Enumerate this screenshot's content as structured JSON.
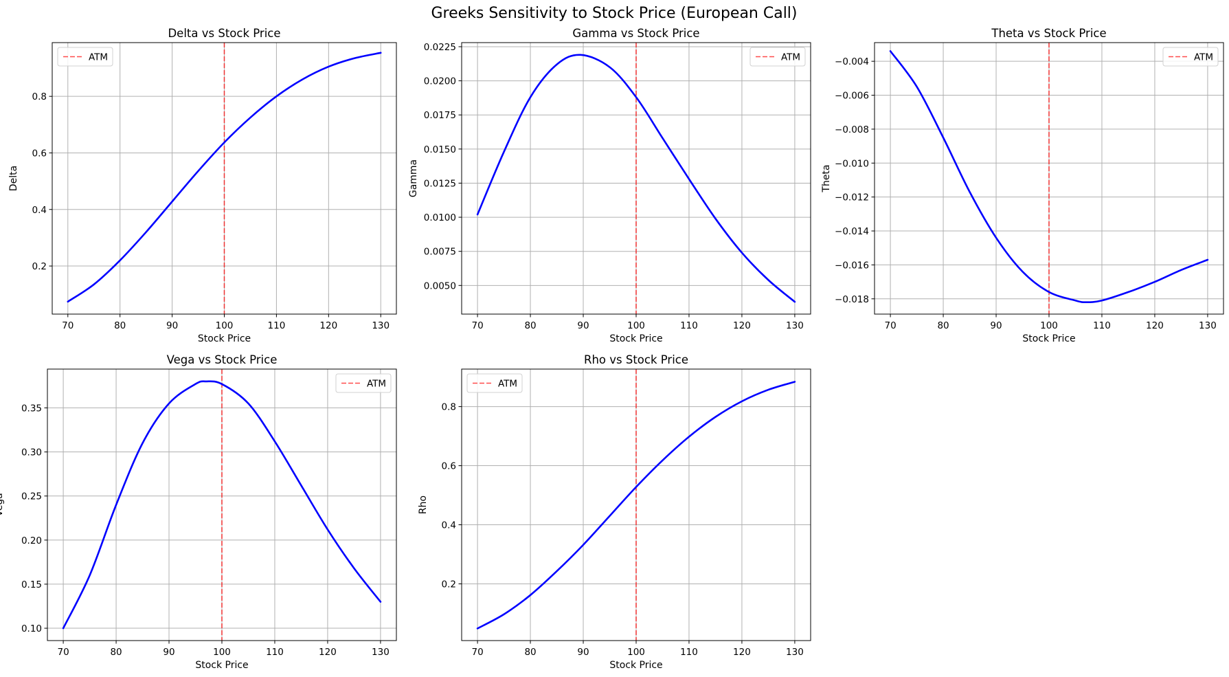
{
  "figure": {
    "title": "Greeks Sensitivity to Stock Price (European Call)"
  },
  "colors": {
    "series": "#0000ff",
    "atm_line": "#ff0000",
    "grid": "#b0b0b0",
    "axes": "#000000"
  },
  "chart_data": [
    {
      "type": "line",
      "title": "Delta vs Stock Price",
      "xlabel": "Stock Price",
      "ylabel": "Delta",
      "xlim": [
        67,
        133
      ],
      "ylim": [
        0.03,
        0.99
      ],
      "xticks": [
        70,
        80,
        90,
        100,
        110,
        120,
        130
      ],
      "yticks": [
        0.2,
        0.4,
        0.6,
        0.8
      ],
      "ytick_labels": [
        "0.2",
        "0.4",
        "0.6",
        "0.8"
      ],
      "grid": true,
      "legend_position": "upper-left",
      "atm_line": {
        "x": 100,
        "label": "ATM"
      },
      "series": [
        {
          "x": [
            70,
            75,
            80,
            85,
            90,
            95,
            100,
            105,
            110,
            115,
            120,
            125,
            130
          ],
          "y": [
            0.074,
            0.135,
            0.22,
            0.32,
            0.428,
            0.536,
            0.637,
            0.725,
            0.8,
            0.86,
            0.905,
            0.935,
            0.954
          ]
        }
      ]
    },
    {
      "type": "line",
      "title": "Gamma vs Stock Price",
      "xlabel": "Stock Price",
      "ylabel": "Gamma",
      "xlim": [
        67,
        133
      ],
      "ylim": [
        0.0029,
        0.0228
      ],
      "xticks": [
        70,
        80,
        90,
        100,
        110,
        120,
        130
      ],
      "yticks": [
        0.005,
        0.0075,
        0.01,
        0.0125,
        0.015,
        0.0175,
        0.02,
        0.0225
      ],
      "ytick_labels": [
        "0.0050",
        "0.0075",
        "0.0100",
        "0.0125",
        "0.0150",
        "0.0175",
        "0.0200",
        "0.0225"
      ],
      "grid": true,
      "legend_position": "upper-right",
      "atm_line": {
        "x": 100,
        "label": "ATM"
      },
      "series": [
        {
          "x": [
            70,
            75,
            80,
            85,
            89.5,
            95,
            100,
            105,
            110,
            115,
            120,
            125,
            130
          ],
          "y": [
            0.0102,
            0.0148,
            0.0188,
            0.0212,
            0.0219,
            0.021,
            0.0188,
            0.0158,
            0.0128,
            0.0099,
            0.0074,
            0.0054,
            0.0038
          ]
        }
      ]
    },
    {
      "type": "line",
      "title": "Theta vs Stock Price",
      "xlabel": "Stock Price",
      "ylabel": "Theta",
      "xlim": [
        67,
        133
      ],
      "ylim": [
        -0.0189,
        -0.0029
      ],
      "xticks": [
        70,
        80,
        90,
        100,
        110,
        120,
        130
      ],
      "yticks": [
        -0.018,
        -0.016,
        -0.014,
        -0.012,
        -0.01,
        -0.008,
        -0.006,
        -0.004
      ],
      "ytick_labels": [
        "−0.018",
        "−0.016",
        "−0.014",
        "−0.012",
        "−0.010",
        "−0.008",
        "−0.006",
        "−0.004"
      ],
      "grid": true,
      "legend_position": "upper-right",
      "atm_line": {
        "x": 100,
        "label": "ATM"
      },
      "series": [
        {
          "x": [
            70,
            75,
            80,
            85,
            90,
            95,
            100,
            105,
            107,
            110,
            115,
            120,
            125,
            130
          ],
          "y": [
            -0.0034,
            -0.0055,
            -0.0085,
            -0.0117,
            -0.0144,
            -0.0164,
            -0.0176,
            -0.0181,
            -0.0182,
            -0.0181,
            -0.0176,
            -0.017,
            -0.0163,
            -0.0157
          ]
        }
      ]
    },
    {
      "type": "line",
      "title": "Vega vs Stock Price",
      "xlabel": "Stock Price",
      "ylabel": "Vega",
      "xlim": [
        67,
        133
      ],
      "ylim": [
        0.086,
        0.394
      ],
      "xticks": [
        70,
        80,
        90,
        100,
        110,
        120,
        130
      ],
      "yticks": [
        0.1,
        0.15,
        0.2,
        0.25,
        0.3,
        0.35
      ],
      "ytick_labels": [
        "0.10",
        "0.15",
        "0.20",
        "0.25",
        "0.30",
        "0.35"
      ],
      "grid": true,
      "legend_position": "upper-right",
      "atm_line": {
        "x": 100,
        "label": "ATM"
      },
      "series": [
        {
          "x": [
            70,
            75,
            80,
            85,
            90,
            95,
            97,
            100,
            105,
            110,
            115,
            120,
            125,
            130
          ],
          "y": [
            0.1,
            0.16,
            0.24,
            0.31,
            0.355,
            0.377,
            0.38,
            0.377,
            0.355,
            0.312,
            0.262,
            0.212,
            0.168,
            0.13
          ]
        }
      ]
    },
    {
      "type": "line",
      "title": "Rho vs Stock Price",
      "xlabel": "Stock Price",
      "ylabel": "Rho",
      "xlim": [
        67,
        133
      ],
      "ylim": [
        0.008,
        0.927
      ],
      "xticks": [
        70,
        80,
        90,
        100,
        110,
        120,
        130
      ],
      "yticks": [
        0.2,
        0.4,
        0.6,
        0.8
      ],
      "ytick_labels": [
        "0.2",
        "0.4",
        "0.6",
        "0.8"
      ],
      "grid": true,
      "legend_position": "upper-left",
      "atm_line": {
        "x": 100,
        "label": "ATM"
      },
      "series": [
        {
          "x": [
            70,
            75,
            80,
            85,
            90,
            95,
            100,
            105,
            110,
            115,
            120,
            125,
            130
          ],
          "y": [
            0.049,
            0.097,
            0.162,
            0.243,
            0.332,
            0.43,
            0.528,
            0.618,
            0.698,
            0.765,
            0.818,
            0.857,
            0.884
          ]
        }
      ]
    }
  ]
}
